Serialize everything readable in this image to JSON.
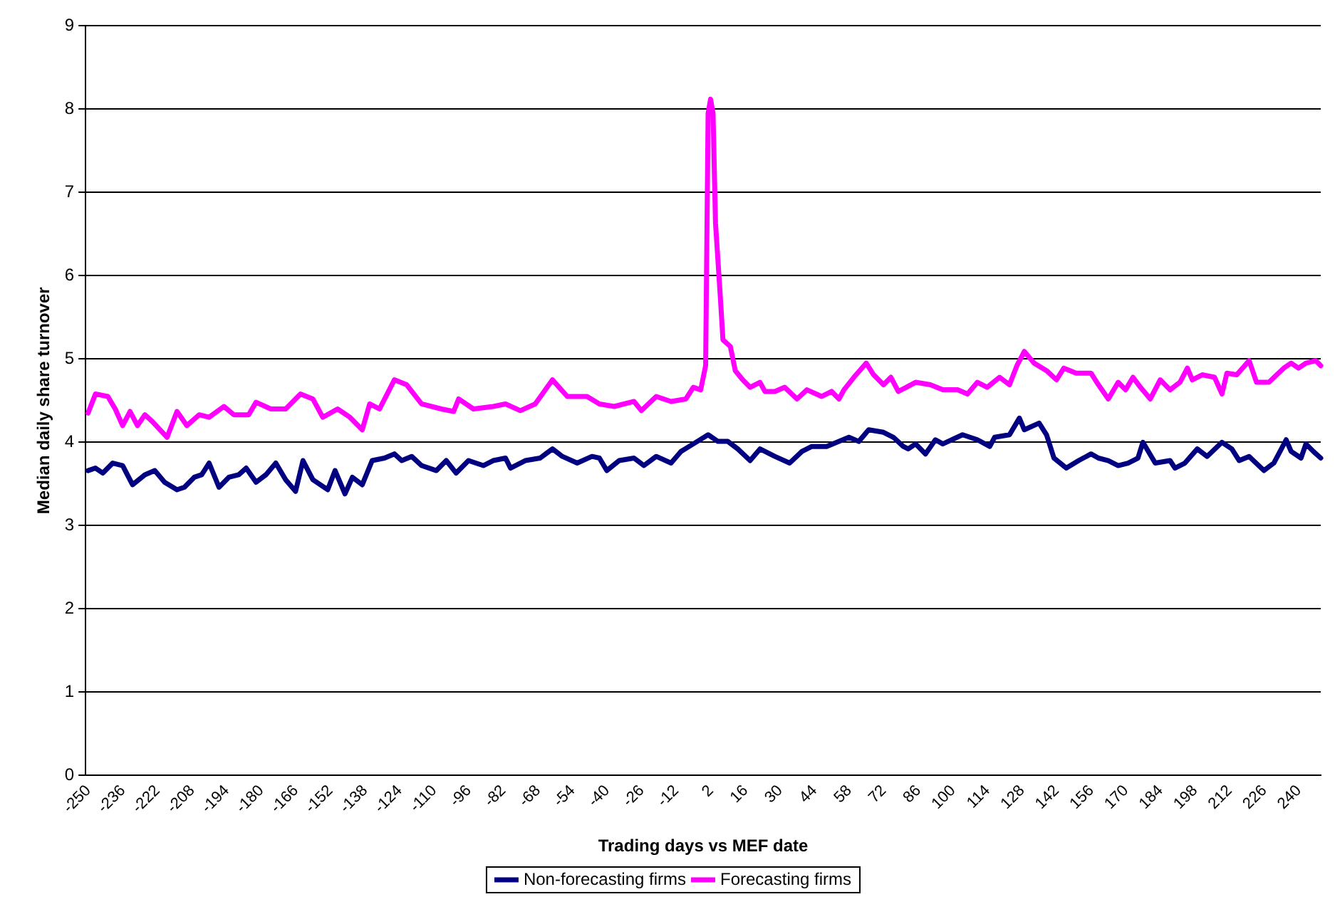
{
  "chart_data": {
    "type": "line",
    "xlabel": "Trading days vs MEF date",
    "ylabel": "Median daily share turnover",
    "xlim": [
      -250,
      250
    ],
    "xticks": [
      -250,
      -236,
      -222,
      -208,
      -194,
      -180,
      -166,
      -152,
      -138,
      -124,
      -110,
      -96,
      -82,
      -68,
      -54,
      -40,
      -26,
      -12,
      2,
      16,
      30,
      44,
      58,
      72,
      86,
      100,
      114,
      128,
      142,
      156,
      170,
      184,
      198,
      212,
      226,
      240
    ],
    "ylim": [
      0,
      9
    ],
    "yticks": [
      0,
      1,
      2,
      3,
      4,
      5,
      6,
      7,
      8,
      9
    ],
    "grid": "y",
    "legend": "bottom",
    "marker": "none",
    "line_style": "solid",
    "series": [
      {
        "name": "Non-forecasting firms",
        "color": "#000080",
        "x": [
          -249,
          -246,
          -243,
          -239,
          -235,
          -231,
          -226,
          -222,
          -218,
          -213,
          -210,
          -206,
          -203,
          -200,
          -196,
          -192,
          -188,
          -185,
          -181,
          -177,
          -173,
          -169,
          -165,
          -162,
          -158,
          -152,
          -149,
          -145,
          -142,
          -138,
          -134,
          -129,
          -125,
          -122,
          -118,
          -114,
          -108,
          -104,
          -100,
          -95,
          -89,
          -85,
          -80,
          -78,
          -72,
          -66,
          -61,
          -57,
          -51,
          -45,
          -42,
          -39,
          -34,
          -28,
          -24,
          -19,
          -13,
          -9,
          -4,
          2,
          6,
          10,
          14,
          19,
          23,
          29,
          35,
          40,
          44,
          50,
          55,
          59,
          63,
          67,
          73,
          77,
          81,
          83,
          86,
          90,
          94,
          97,
          105,
          111,
          116,
          118,
          124,
          128,
          130,
          136,
          139,
          142,
          147,
          152,
          157,
          160,
          164,
          168,
          172,
          176,
          178,
          183,
          189,
          191,
          195,
          200,
          204,
          210,
          214,
          217,
          221,
          227,
          231,
          236,
          238,
          242,
          244,
          247,
          250
        ],
        "values": [
          3.66,
          3.69,
          3.63,
          3.75,
          3.72,
          3.49,
          3.61,
          3.66,
          3.52,
          3.43,
          3.46,
          3.58,
          3.61,
          3.75,
          3.46,
          3.58,
          3.61,
          3.69,
          3.52,
          3.61,
          3.75,
          3.55,
          3.41,
          3.78,
          3.55,
          3.43,
          3.66,
          3.38,
          3.58,
          3.49,
          3.78,
          3.81,
          3.86,
          3.78,
          3.83,
          3.72,
          3.66,
          3.78,
          3.63,
          3.78,
          3.72,
          3.78,
          3.81,
          3.69,
          3.78,
          3.81,
          3.92,
          3.83,
          3.75,
          3.83,
          3.81,
          3.66,
          3.78,
          3.81,
          3.72,
          3.83,
          3.75,
          3.89,
          3.98,
          4.09,
          4.01,
          4.01,
          3.92,
          3.78,
          3.92,
          3.83,
          3.75,
          3.89,
          3.95,
          3.95,
          4.01,
          4.06,
          4.01,
          4.15,
          4.12,
          4.06,
          3.95,
          3.92,
          3.98,
          3.86,
          4.03,
          3.98,
          4.09,
          4.03,
          3.95,
          4.06,
          4.09,
          4.29,
          4.15,
          4.23,
          4.09,
          3.81,
          3.69,
          3.78,
          3.86,
          3.81,
          3.78,
          3.72,
          3.75,
          3.81,
          4.0,
          3.75,
          3.78,
          3.69,
          3.75,
          3.92,
          3.83,
          4.0,
          3.92,
          3.78,
          3.83,
          3.66,
          3.75,
          4.03,
          3.89,
          3.81,
          3.98,
          3.89,
          3.81
        ]
      },
      {
        "name": "Forecasting firms",
        "color": "#ff00ff",
        "x": [
          -249,
          -246,
          -241,
          -238,
          -235,
          -232,
          -229,
          -226,
          -223,
          -217,
          -213,
          -209,
          -204,
          -200,
          -194,
          -190,
          -184,
          -181,
          -175,
          -169,
          -163,
          -158,
          -154,
          -148,
          -143,
          -138,
          -135,
          -131,
          -125,
          -120,
          -114,
          -106,
          -101,
          -99,
          -93,
          -85,
          -80,
          -74,
          -68,
          -61,
          -55,
          -47,
          -42,
          -36,
          -28,
          -25,
          -19,
          -13,
          -7,
          -4,
          -1,
          1,
          2,
          3,
          4,
          5,
          7,
          8,
          11,
          13,
          16,
          19,
          23,
          25,
          29,
          33,
          38,
          42,
          48,
          52,
          55,
          57,
          61,
          66,
          69,
          73,
          76,
          79,
          86,
          92,
          97,
          103,
          107,
          111,
          115,
          120,
          124,
          127,
          130,
          134,
          139,
          143,
          146,
          151,
          157,
          160,
          164,
          168,
          171,
          174,
          177,
          181,
          185,
          189,
          193,
          196,
          198,
          202,
          207,
          210,
          212,
          216,
          221,
          224,
          229,
          235,
          238,
          241,
          244,
          248,
          250
        ],
        "values": [
          4.35,
          4.58,
          4.55,
          4.4,
          4.2,
          4.37,
          4.2,
          4.33,
          4.25,
          4.06,
          4.37,
          4.2,
          4.33,
          4.3,
          4.43,
          4.33,
          4.33,
          4.48,
          4.4,
          4.4,
          4.58,
          4.52,
          4.3,
          4.4,
          4.3,
          4.15,
          4.46,
          4.4,
          4.75,
          4.69,
          4.46,
          4.4,
          4.37,
          4.52,
          4.4,
          4.43,
          4.46,
          4.38,
          4.46,
          4.75,
          4.55,
          4.55,
          4.46,
          4.43,
          4.49,
          4.38,
          4.55,
          4.49,
          4.52,
          4.66,
          4.63,
          4.92,
          7.95,
          8.12,
          7.95,
          6.63,
          5.72,
          5.23,
          5.15,
          4.86,
          4.75,
          4.66,
          4.72,
          4.61,
          4.61,
          4.66,
          4.52,
          4.63,
          4.55,
          4.61,
          4.52,
          4.63,
          4.78,
          4.95,
          4.81,
          4.69,
          4.78,
          4.61,
          4.72,
          4.69,
          4.63,
          4.63,
          4.58,
          4.72,
          4.66,
          4.78,
          4.69,
          4.92,
          5.09,
          4.95,
          4.86,
          4.75,
          4.89,
          4.83,
          4.83,
          4.69,
          4.52,
          4.72,
          4.63,
          4.78,
          4.66,
          4.52,
          4.75,
          4.63,
          4.72,
          4.89,
          4.75,
          4.81,
          4.78,
          4.58,
          4.83,
          4.81,
          4.98,
          4.72,
          4.72,
          4.89,
          4.95,
          4.89,
          4.95,
          4.98,
          4.92
        ]
      }
    ]
  }
}
